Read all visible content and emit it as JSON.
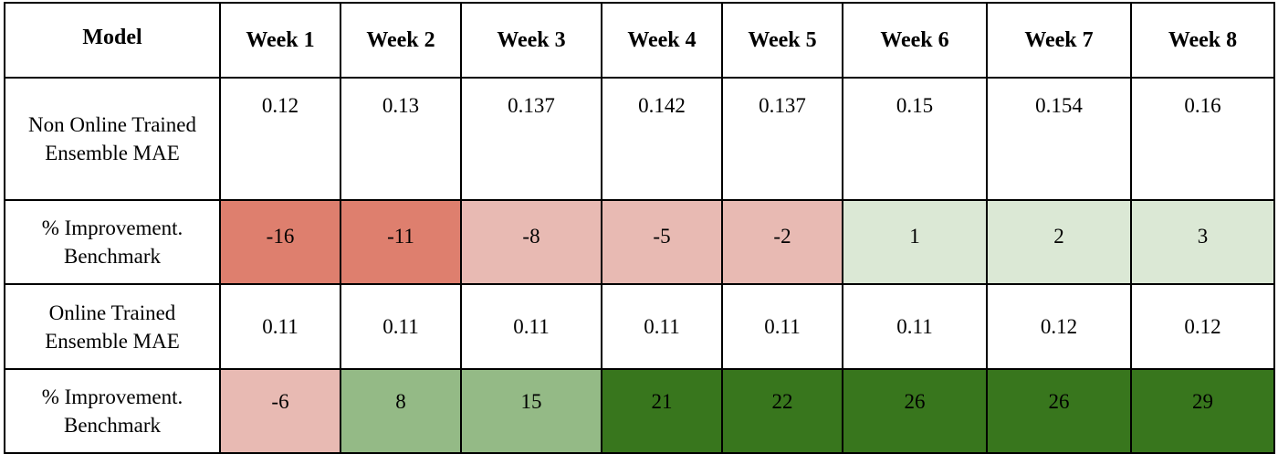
{
  "table": {
    "header": [
      "Model",
      "Week 1",
      "Week 2",
      "Week 3",
      "Week 4",
      "Week 5",
      "Week 6",
      "Week 7",
      "Week 8"
    ],
    "rows": [
      {
        "label": "Non Online Trained Ensemble MAE",
        "values": [
          "0.12",
          "0.13",
          "0.137",
          "0.142",
          "0.137",
          "0.15",
          "0.154",
          "0.16"
        ],
        "colors": [
          "#ffffff",
          "#ffffff",
          "#ffffff",
          "#ffffff",
          "#ffffff",
          "#ffffff",
          "#ffffff",
          "#ffffff"
        ]
      },
      {
        "label": "% Improvement. Benchmark",
        "values": [
          "-16",
          "-11",
          "-8",
          "-5",
          "-2",
          "1",
          "2",
          "3"
        ],
        "colors": [
          "#de7f6e",
          "#de7f6e",
          "#e8bab3",
          "#e8bab3",
          "#e8bab3",
          "#dbe8d5",
          "#dbe8d5",
          "#dbe8d5"
        ]
      },
      {
        "label": "Online Trained Ensemble MAE",
        "values": [
          "0.11",
          "0.11",
          "0.11",
          "0.11",
          "0.11",
          "0.11",
          "0.12",
          "0.12"
        ],
        "colors": [
          "#ffffff",
          "#ffffff",
          "#ffffff",
          "#ffffff",
          "#ffffff",
          "#ffffff",
          "#ffffff",
          "#ffffff"
        ]
      },
      {
        "label": "% Improvement. Benchmark",
        "values": [
          "-6",
          "8",
          "15",
          "21",
          "22",
          "26",
          "26",
          "29"
        ],
        "colors": [
          "#e8bab3",
          "#94ba86",
          "#94ba86",
          "#38761d",
          "#38761d",
          "#38761d",
          "#38761d",
          "#38761d"
        ]
      }
    ]
  }
}
